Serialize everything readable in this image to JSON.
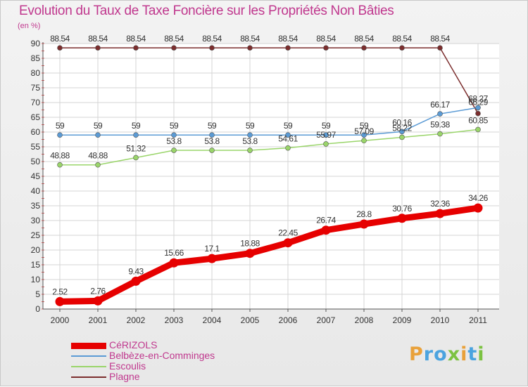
{
  "chart_data": {
    "type": "line",
    "title": "Evolution du Taux de Taxe Foncière sur les Propriétés Non Bâties",
    "unit_label": "(en %)",
    "x": [
      "2000",
      "2001",
      "2002",
      "2003",
      "2004",
      "2005",
      "2006",
      "2007",
      "2008",
      "2009",
      "2010",
      "2011"
    ],
    "ylim": [
      0,
      90
    ],
    "yticks": [
      0,
      5,
      10,
      15,
      20,
      25,
      30,
      35,
      40,
      45,
      50,
      55,
      60,
      65,
      70,
      75,
      80,
      85,
      90
    ],
    "grid": true,
    "legend_position": "bottom-left",
    "series": [
      {
        "name": "CéRIZOLS",
        "color": "#e60000",
        "values": [
          2.52,
          2.76,
          9.43,
          15.66,
          17.1,
          18.88,
          22.45,
          26.74,
          28.8,
          30.76,
          32.36,
          34.26
        ],
        "labels": [
          "2.52",
          "2.76",
          "9.43",
          "15.66",
          "17.1",
          "18.88",
          "22.45",
          "26.74",
          "28.8",
          "30.76",
          "32.36",
          "34.26"
        ]
      },
      {
        "name": "Belbèze-en-Comminges",
        "color": "#5b9bd5",
        "values": [
          59,
          59,
          59,
          59,
          59,
          59,
          59,
          59,
          59,
          60.16,
          66.17,
          68.27
        ],
        "labels": [
          "59",
          "59",
          "59",
          "59",
          "59",
          "59",
          "59",
          "59",
          "59",
          "60.16",
          "66.17",
          "68.27"
        ]
      },
      {
        "name": "Escoulis",
        "color": "#9ad56a",
        "values": [
          48.88,
          48.88,
          51.32,
          53.8,
          53.8,
          53.8,
          54.61,
          55.97,
          57.09,
          58.22,
          59.38,
          60.85
        ],
        "labels": [
          "48.88",
          "48.88",
          "51.32",
          "53.8",
          "53.8",
          "53.8",
          "54.61",
          "55.97",
          "57.09",
          "58.22",
          "59.38",
          "60.85"
        ]
      },
      {
        "name": "Plagne",
        "color": "#7b2d2d",
        "values": [
          88.54,
          88.54,
          88.54,
          88.54,
          88.54,
          88.54,
          88.54,
          88.54,
          88.54,
          88.54,
          88.54,
          66.29
        ],
        "labels": [
          "88.54",
          "88.54",
          "88.54",
          "88.54",
          "88.54",
          "88.54",
          "88.54",
          "88.54",
          "88.54",
          "88.54",
          "88.54",
          "66.29"
        ]
      }
    ]
  },
  "logo": {
    "letters": [
      "P",
      "r",
      "o",
      "x",
      "i",
      "t",
      "i"
    ],
    "colors": [
      "#e9a13a",
      "#4aa3df",
      "#4aa3df",
      "#7cc242",
      "#e9a13a",
      "#4aa3df",
      "#7cc242"
    ]
  }
}
